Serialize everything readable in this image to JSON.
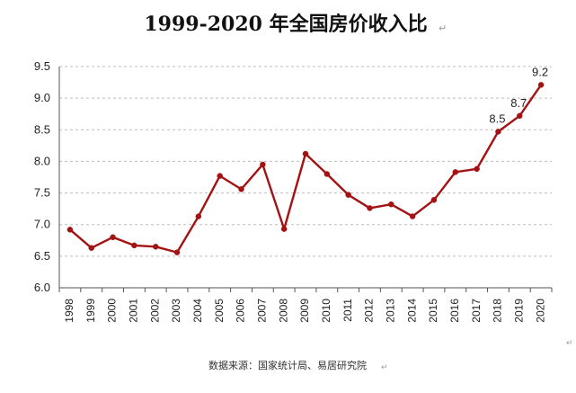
{
  "chart_data": {
    "type": "line",
    "title": "1999-2020 年全国房价收入比",
    "title_mark": "↵",
    "source": "数据来源：国家统计局、易居研究院",
    "source_mark": "↵",
    "edge_mark": "↵",
    "xlabel": "",
    "ylabel": "",
    "ylim": [
      6.0,
      9.5
    ],
    "yticks": [
      "6.0",
      "6.5",
      "7.0",
      "7.5",
      "8.0",
      "8.5",
      "9.0",
      "9.5"
    ],
    "grid": true,
    "legend": "none",
    "line_color": "#a31313",
    "categories": [
      "1998",
      "1999",
      "2000",
      "2001",
      "2002",
      "2003",
      "2004",
      "2005",
      "2006",
      "2007",
      "2008",
      "2009",
      "2010",
      "2011",
      "2012",
      "2013",
      "2014",
      "2015",
      "2016",
      "2017",
      "2018",
      "2019",
      "2020"
    ],
    "series": [
      {
        "values": [
          6.92,
          6.63,
          6.8,
          6.67,
          6.65,
          6.56,
          7.13,
          7.77,
          7.56,
          7.95,
          6.93,
          8.12,
          7.8,
          7.47,
          7.26,
          7.32,
          7.13,
          7.39,
          7.83,
          7.88,
          8.47,
          8.72,
          9.21
        ]
      }
    ],
    "data_labels": [
      {
        "category": "2018",
        "value": 8.47,
        "text": "8.5"
      },
      {
        "category": "2019",
        "value": 8.72,
        "text": "8.7"
      },
      {
        "category": "2020",
        "value": 9.21,
        "text": "9.2"
      }
    ]
  }
}
